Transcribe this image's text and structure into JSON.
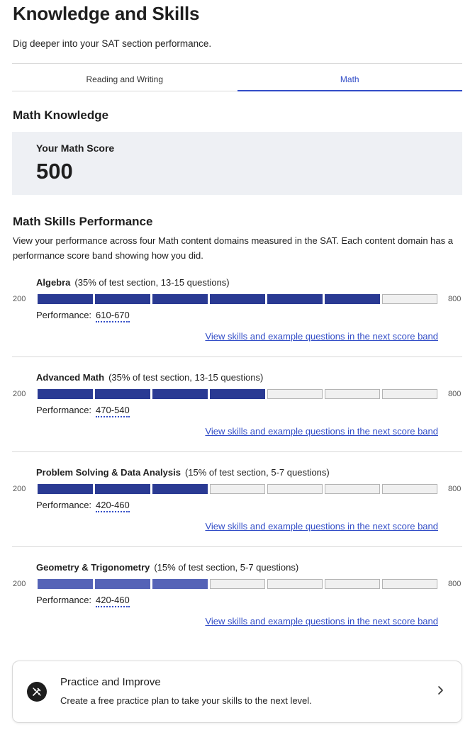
{
  "header": {
    "title": "Knowledge and Skills",
    "subtitle": "Dig deeper into your SAT section performance."
  },
  "tabs": [
    {
      "label": "Reading and Writing",
      "active": false
    },
    {
      "label": "Math",
      "active": true
    }
  ],
  "knowledge": {
    "title": "Math Knowledge",
    "score_label": "Your Math Score",
    "score_value": "500"
  },
  "skills": {
    "title": "Math Skills Performance",
    "description": "View your performance across four Math content domains measured in the SAT. Each content domain has a performance score band showing how you did.",
    "axis_min": "200",
    "axis_max": "800",
    "segments_total": 7,
    "performance_label": "Performance:",
    "link_label": "View skills and example questions in the next score band",
    "domains": [
      {
        "name": "Algebra",
        "meta": "(35% of test section, 13-15 questions)",
        "filled_segments": 6,
        "performance": "610-670"
      },
      {
        "name": "Advanced Math",
        "meta": "(35% of test section, 13-15 questions)",
        "filled_segments": 4,
        "performance": "470-540"
      },
      {
        "name": "Problem Solving & Data Analysis",
        "meta": "(15% of test section, 5-7 questions)",
        "filled_segments": 3,
        "performance": "420-460"
      },
      {
        "name": "Geometry & Trigonometry",
        "meta": "(15% of test section, 5-7 questions)",
        "filled_segments": 3,
        "performance": "420-460"
      }
    ]
  },
  "practice": {
    "icon": "pencil-ruler-icon",
    "title": "Practice and Improve",
    "description": "Create a free practice plan to take your skills to the next level."
  },
  "colors": {
    "accent": "#324dc7",
    "bar_filled": "#2a3a93",
    "bar_filled_light": "#5563b7",
    "bar_empty": "#f0f0f0",
    "score_box_bg": "#eef0f4"
  }
}
